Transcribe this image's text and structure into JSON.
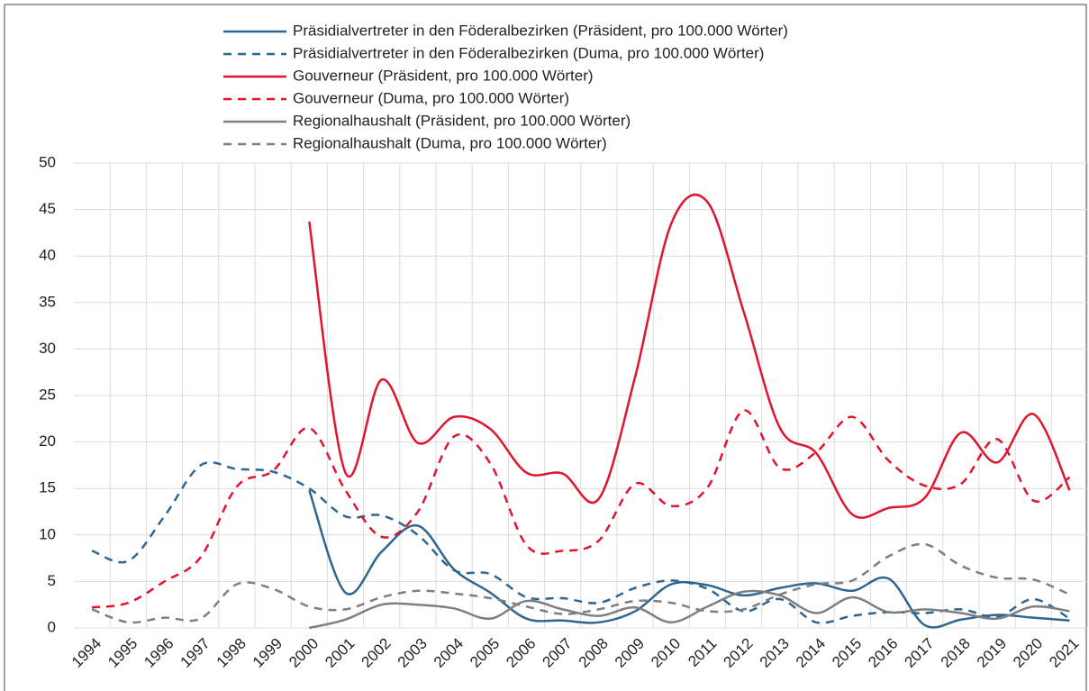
{
  "chart_data": {
    "type": "line",
    "categories": [
      "1994",
      "1995",
      "1996",
      "1997",
      "1998",
      "1999",
      "2000",
      "2001",
      "2002",
      "2003",
      "2004",
      "2005",
      "2006",
      "2007",
      "2008",
      "2009",
      "2010",
      "2011",
      "2012",
      "2013",
      "2014",
      "2015",
      "2016",
      "2017",
      "2018",
      "2019",
      "2020",
      "2021"
    ],
    "series": [
      {
        "name": "Präsidialvertreter in den Föderalbezirken (Präsident, pro 100.000 Wörter)",
        "color": "#2e6690",
        "line_style": "solid",
        "values": [
          null,
          null,
          null,
          null,
          null,
          null,
          14.8,
          3.8,
          8.2,
          11,
          6.3,
          3.8,
          1.0,
          0.8,
          0.6,
          1.8,
          4.7,
          4.6,
          3.5,
          4.3,
          4.8,
          4.0,
          5.3,
          0.3,
          0.9,
          1.4,
          1.1,
          0.8
        ]
      },
      {
        "name": "Präsidialvertreter in den Föderalbezirken (Duma, pro 100.000 Wörter)",
        "color": "#2e6690",
        "line_style": "dashed",
        "values": [
          8.3,
          7.2,
          12,
          17.5,
          17.1,
          16.8,
          15.0,
          12.0,
          12.1,
          10.0,
          6.2,
          5.8,
          3.3,
          3.2,
          2.7,
          4.3,
          5.1,
          4.2,
          1.8,
          3.1,
          0.6,
          1.3,
          1.7,
          1.6,
          2.0,
          1.2,
          3.1,
          1.0
        ]
      },
      {
        "name": "Gouverneur (Präsident, pro 100.000 Wörter)",
        "color": "#e0142e",
        "line_style": "solid",
        "values": [
          null,
          null,
          null,
          null,
          null,
          null,
          43.7,
          16.7,
          26.7,
          19.9,
          22.7,
          21.4,
          16.7,
          16.6,
          13.9,
          27,
          43.5,
          45.8,
          34,
          21.5,
          18.8,
          12.2,
          12.9,
          14.0,
          21.0,
          17.8,
          23.0,
          14.8
        ]
      },
      {
        "name": "Gouverneur (Duma, pro 100.000 Wörter)",
        "color": "#e0142e",
        "line_style": "dashed",
        "values": [
          2.2,
          2.7,
          5.0,
          7.6,
          15.2,
          16.9,
          21.5,
          14.8,
          9.8,
          12.5,
          20.6,
          17.7,
          8.9,
          8.3,
          9.4,
          15.5,
          13.1,
          15.1,
          23.4,
          17.2,
          18.9,
          22.7,
          18.0,
          15.3,
          15.5,
          20.3,
          13.7,
          16.2
        ]
      },
      {
        "name": "Regionalhaushalt (Präsident, pro 100.000 Wörter)",
        "color": "#7f7f7f",
        "line_style": "solid",
        "values": [
          null,
          null,
          null,
          null,
          null,
          null,
          0,
          0.9,
          2.5,
          2.5,
          2.1,
          1.0,
          2.9,
          2.0,
          1.3,
          2.2,
          0.6,
          2.3,
          3.9,
          3.5,
          1.6,
          3.3,
          1.7,
          2.0,
          1.6,
          1.0,
          2.3,
          1.8
        ]
      },
      {
        "name": "Regionalhaushalt (Duma, pro 100.000 Wörter)",
        "color": "#7f7f7f",
        "line_style": "dashed",
        "values": [
          2.0,
          0.6,
          1.1,
          1.0,
          4.7,
          4.2,
          2.3,
          2.0,
          3.3,
          4.0,
          3.7,
          3.2,
          2.3,
          1.5,
          2.0,
          2.9,
          2.7,
          1.8,
          2.0,
          3.6,
          4.7,
          5.1,
          7.7,
          9.0,
          6.7,
          5.4,
          5.2,
          3.6
        ]
      }
    ],
    "ylim": [
      0,
      50
    ],
    "yticks": [
      0,
      5,
      10,
      15,
      20,
      25,
      30,
      35,
      40,
      45,
      50
    ],
    "grid": true
  }
}
